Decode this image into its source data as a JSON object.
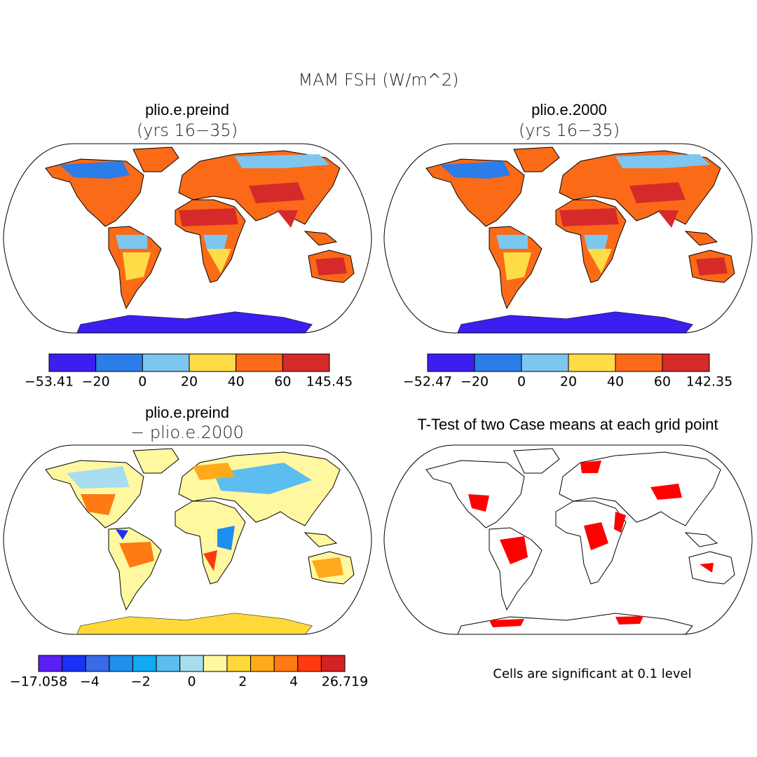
{
  "title": "MAM FSH (W/m^2)",
  "panels": [
    {
      "title": "plio.e.preind",
      "subtitle": "(yrs 16−35)",
      "colorbar": {
        "colors": [
          "#3a1ff0",
          "#2b7de9",
          "#7cc6f0",
          "#fedc47",
          "#fa6a17",
          "#d62a2a"
        ],
        "labels": [
          "−53.41",
          "−20",
          "0",
          "20",
          "40",
          "60",
          "145.45"
        ]
      }
    },
    {
      "title": "plio.e.2000",
      "subtitle": "(yrs 16−35)",
      "colorbar": {
        "colors": [
          "#3a1ff0",
          "#2b7de9",
          "#7cc6f0",
          "#fedc47",
          "#fa6a17",
          "#d62a2a"
        ],
        "labels": [
          "−52.47",
          "−20",
          "0",
          "20",
          "40",
          "60",
          "142.35"
        ]
      }
    },
    {
      "title": "plio.e.preind",
      "subtitle": "− plio.e.2000",
      "colorbar": {
        "colors": [
          "#5b1ff5",
          "#1a32f5",
          "#3a6ae8",
          "#1f8fef",
          "#12aaf5",
          "#5bbdf0",
          "#a8ddf0",
          "#fff8a0",
          "#ffd83a",
          "#ffaa1a",
          "#ff7a12",
          "#ff3a10",
          "#d42222"
        ],
        "labels": [
          "−17.058",
          "−4",
          "−2",
          "0",
          "2",
          "4",
          "26.719"
        ]
      }
    },
    {
      "title": "T-Test of two Case means at each grid point",
      "note": "Cells are significant at 0.1 level"
    }
  ]
}
